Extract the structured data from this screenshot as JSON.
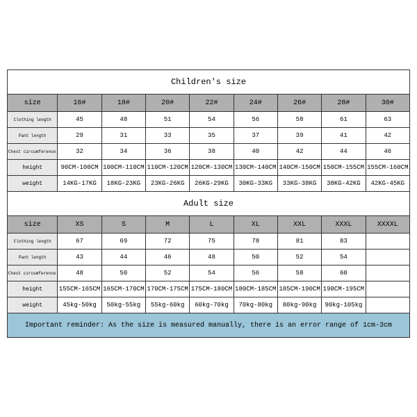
{
  "children": {
    "title": "Children's size",
    "header": [
      "size",
      "16#",
      "18#",
      "20#",
      "22#",
      "24#",
      "26#",
      "28#",
      "30#"
    ],
    "rows": [
      {
        "label": "Clothing length",
        "small": true,
        "values": [
          "45",
          "48",
          "51",
          "54",
          "56",
          "58",
          "61",
          "63"
        ]
      },
      {
        "label": "Pant length",
        "small": true,
        "values": [
          "29",
          "31",
          "33",
          "35",
          "37",
          "39",
          "41",
          "42"
        ]
      },
      {
        "label": "Chest circumference 1/2",
        "small": true,
        "values": [
          "32",
          "34",
          "36",
          "38",
          "40",
          "42",
          "44",
          "46"
        ]
      },
      {
        "label": "height",
        "small": false,
        "values": [
          "90CM-100CM",
          "100CM-110CM",
          "110CM-120CM",
          "120CM-130CM",
          "130CM-140CM",
          "140CM-150CM",
          "150CM-155CM",
          "155CM-160CM"
        ]
      },
      {
        "label": "weight",
        "small": false,
        "values": [
          "14KG-17KG",
          "18KG-23KG",
          "23KG-26KG",
          "26KG-29KG",
          "30KG-33KG",
          "33KG-38KG",
          "38KG-42KG",
          "42KG-45KG"
        ]
      }
    ]
  },
  "adult": {
    "title": "Adult size",
    "header": [
      "size",
      "XS",
      "S",
      "M",
      "L",
      "XL",
      "XXL",
      "XXXL",
      "XXXXL"
    ],
    "rows": [
      {
        "label": "Clothing length",
        "small": true,
        "values": [
          "67",
          "69",
          "72",
          "75",
          "78",
          "81",
          "83",
          ""
        ]
      },
      {
        "label": "Pant length",
        "small": true,
        "values": [
          "43",
          "44",
          "46",
          "48",
          "50",
          "52",
          "54",
          ""
        ]
      },
      {
        "label": "Chest circumference 1/2",
        "small": true,
        "values": [
          "48",
          "50",
          "52",
          "54",
          "56",
          "58",
          "60",
          ""
        ]
      },
      {
        "label": "height",
        "small": false,
        "values": [
          "155CM-165CM",
          "165CM-170CM",
          "170CM-175CM",
          "175CM-180CM",
          "180CM-185CM",
          "185CM-190CM",
          "190CM-195CM",
          ""
        ]
      },
      {
        "label": "weight",
        "small": false,
        "values": [
          "45kg-50kg",
          "50kg-55kg",
          "55kg-60kg",
          "60kg-70kg",
          "70kg-80kg",
          "80kg-90kg",
          "90kg-105kg",
          ""
        ]
      }
    ]
  },
  "reminder": "Important reminder: As the size is measured manually, there is an error range of 1cm-3cm"
}
